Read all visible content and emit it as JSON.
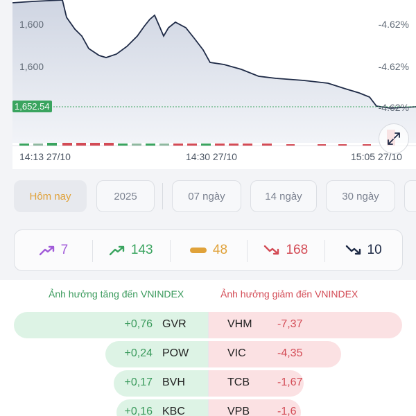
{
  "chart": {
    "y_left_labels": [
      "1,600",
      "1,600"
    ],
    "y_right_labels": [
      "-4.62%",
      "-4.62%",
      "-4.62%"
    ],
    "current_value": "1,652.54",
    "x_labels": [
      "14:13 27/10",
      "14:30 27/10",
      "15:05 27/10"
    ],
    "line_color": "#1e2a46",
    "fill_color": "#dfe3ec",
    "expand_icon": "expand-arrows-icon"
  },
  "range_tabs": [
    {
      "label": "Hôm nay",
      "active": true
    },
    {
      "label": "2025",
      "active": false
    },
    {
      "label": "07 ngày",
      "active": false
    },
    {
      "label": "14 ngày",
      "active": false
    },
    {
      "label": "30 ngày",
      "active": false
    }
  ],
  "breadth": [
    {
      "icon": "ceiling-up-arrow-icon",
      "count": "7",
      "color": "#a15bd9"
    },
    {
      "icon": "up-arrow-icon",
      "count": "143",
      "color": "#3aa45f"
    },
    {
      "icon": "unchanged-bar-icon",
      "count": "48",
      "color": "#e0a23a"
    },
    {
      "icon": "down-arrow-icon",
      "count": "168",
      "color": "#d34b55"
    },
    {
      "icon": "floor-down-arrow-icon",
      "count": "10",
      "color": "#1e2a46"
    }
  ],
  "impact": {
    "up_title": "Ảnh hưởng tăng đến VNINDEX",
    "down_title": "Ảnh hưởng giảm đến VNINDEX",
    "up_color": "#3a9a5c",
    "down_color": "#d34b55",
    "rows": [
      {
        "up_ticker": "GVR",
        "up_value": "+0,76",
        "down_ticker": "VHM",
        "down_value": "-7,37"
      },
      {
        "up_ticker": "POW",
        "up_value": "+0,24",
        "down_ticker": "VIC",
        "down_value": "-4,35"
      },
      {
        "up_ticker": "BVH",
        "up_value": "+0,17",
        "down_ticker": "TCB",
        "down_value": "-1,67"
      },
      {
        "up_ticker": "KBC",
        "up_value": "+0,16",
        "down_ticker": "VPB",
        "down_value": "-1,6"
      }
    ]
  }
}
